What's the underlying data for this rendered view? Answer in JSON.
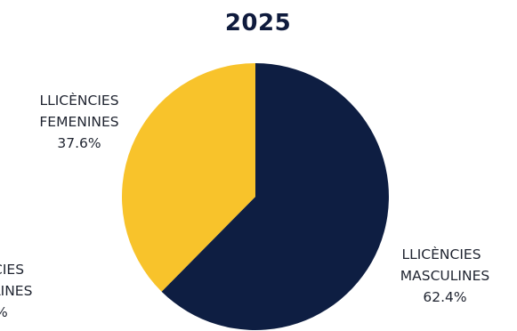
{
  "chart_data": {
    "type": "pie",
    "title": "2025",
    "slices": [
      {
        "label_lines": [
          "LLICÈNCIES",
          "MASCULINES"
        ],
        "value": 62.4,
        "value_text": "62.4%",
        "color": "#0e1e42"
      },
      {
        "label_lines": [
          "LLICÈNCIES",
          "FEMENINES"
        ],
        "value": 37.6,
        "value_text": "37.6%",
        "color": "#f8c32b"
      }
    ],
    "partial_left_label": {
      "lines": [
        "CIES",
        "LINES",
        "%"
      ]
    }
  }
}
